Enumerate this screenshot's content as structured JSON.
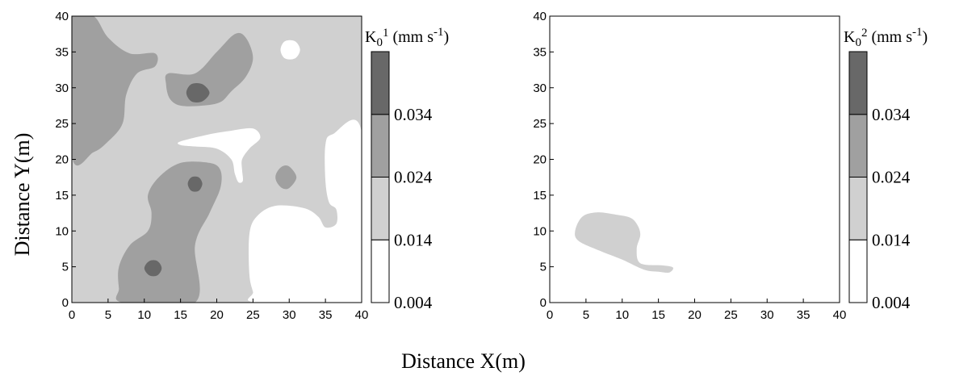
{
  "colors": {
    "level_0": "#ffffff",
    "level_1": "#d0d0d0",
    "level_2": "#a0a0a0",
    "level_3": "#686868",
    "outline": "#000000"
  },
  "figure": {
    "xlabel": "Distance X(m)",
    "ylabel": "Distance Y(m)"
  },
  "chart_data": [
    {
      "type": "heatmap",
      "panel": "left",
      "legend_title_main": "K",
      "legend_title_sub": "0",
      "legend_title_sup": "1",
      "legend_title_unit": " (mm s",
      "legend_title_unit_sup": "-1",
      "legend_title_close": ")",
      "legend_levels": [
        0.004,
        0.014,
        0.024,
        0.034
      ],
      "legend_labels": [
        "0.004",
        "0.014",
        "0.024",
        "0.034"
      ],
      "xlim": [
        0,
        40
      ],
      "ylim": [
        0,
        40
      ],
      "x_ticks": [
        "0",
        "5",
        "10",
        "15",
        "20",
        "25",
        "30",
        "35",
        "40"
      ],
      "y_ticks": [
        "0",
        "5",
        "10",
        "15",
        "20",
        "25",
        "30",
        "35",
        "40"
      ],
      "grid": false,
      "background_class": "0.014–0.024",
      "regions": [
        {
          "class": "0.024–0.034",
          "points": [
            [
              0,
              40
            ],
            [
              3,
              40
            ],
            [
              5,
              37
            ],
            [
              8,
              34.8
            ],
            [
              11.5,
              34.8
            ],
            [
              11.5,
              33
            ],
            [
              9,
              32
            ],
            [
              7.5,
              29
            ],
            [
              7,
              25
            ],
            [
              5,
              22.5
            ],
            [
              3,
              21
            ],
            [
              0,
              20.5
            ]
          ]
        },
        {
          "class": "0.024–0.034",
          "points": [
            [
              13.3,
              32
            ],
            [
              17,
              32
            ],
            [
              20,
              35
            ],
            [
              22.5,
              37.5
            ],
            [
              24,
              37
            ],
            [
              25,
              34.2
            ],
            [
              24,
              31.5
            ],
            [
              22,
              29.5
            ],
            [
              20.5,
              28
            ],
            [
              18,
              27.5
            ],
            [
              15,
              27.5
            ],
            [
              13.5,
              28.5
            ],
            [
              13,
              30.5
            ]
          ]
        },
        {
          "class": "0.024–0.034",
          "points": [
            [
              7,
              0
            ],
            [
              17,
              0
            ],
            [
              17,
              8
            ],
            [
              19,
              12.5
            ],
            [
              20.5,
              16
            ],
            [
              20.5,
              18.5
            ],
            [
              19,
              19.5
            ],
            [
              15,
              19.5
            ],
            [
              12,
              17.5
            ],
            [
              10.5,
              15
            ],
            [
              11,
              12.5
            ],
            [
              10.5,
              10
            ],
            [
              8,
              8
            ],
            [
              6.5,
              5
            ],
            [
              6.5,
              2
            ]
          ]
        },
        {
          "class": "0.024–0.034",
          "points": [
            [
              28.2,
              18
            ],
            [
              29,
              19
            ],
            [
              30,
              19
            ],
            [
              31,
              17.5
            ],
            [
              30,
              16
            ],
            [
              29,
              16
            ],
            [
              28.2,
              17
            ]
          ]
        },
        {
          "class": "0.034–0.044",
          "points": [
            [
              15.8,
              29.3
            ],
            [
              16.5,
              30.5
            ],
            [
              18,
              30.5
            ],
            [
              19,
              29.3
            ],
            [
              18,
              28.1
            ],
            [
              16.5,
              28.1
            ]
          ]
        },
        {
          "class": "0.034–0.044",
          "points": [
            [
              16,
              16.6
            ],
            [
              16.5,
              17.5
            ],
            [
              17.5,
              17.5
            ],
            [
              18,
              16.6
            ],
            [
              17.5,
              15.6
            ],
            [
              16.5,
              15.6
            ]
          ]
        },
        {
          "class": "0.034–0.044",
          "points": [
            [
              10,
              4.8
            ],
            [
              10.7,
              5.8
            ],
            [
              11.8,
              5.8
            ],
            [
              12.4,
              4.8
            ],
            [
              11.8,
              3.8
            ],
            [
              10.7,
              3.8
            ]
          ]
        },
        {
          "class": "0.004–0.014",
          "points": [
            [
              25.5,
              0
            ],
            [
              40,
              0
            ],
            [
              40,
              23.8
            ],
            [
              36,
              23.5
            ],
            [
              35,
              22
            ],
            [
              35,
              17
            ],
            [
              35.5,
              14
            ],
            [
              36.5,
              13
            ],
            [
              36.5,
              11
            ],
            [
              35,
              10.5
            ],
            [
              34,
              12
            ],
            [
              32,
              13.2
            ],
            [
              28,
              13.5
            ],
            [
              25.5,
              12
            ],
            [
              24.5,
              9.5
            ],
            [
              24.5,
              4
            ],
            [
              25,
              1.5
            ]
          ]
        },
        {
          "class": "0.004–0.014",
          "points": [
            [
              15,
              22.5
            ],
            [
              19,
              23.5
            ],
            [
              22,
              24
            ],
            [
              25,
              24.3
            ],
            [
              26,
              23
            ],
            [
              24.5,
              21.5
            ],
            [
              23.5,
              20
            ],
            [
              23.5,
              18.5
            ],
            [
              23.6,
              17
            ],
            [
              23,
              16.8
            ],
            [
              22.5,
              18
            ],
            [
              22,
              20
            ],
            [
              20,
              21.5
            ],
            [
              17,
              21.8
            ],
            [
              15,
              22
            ]
          ]
        },
        {
          "class": "0.004–0.014",
          "points": [
            [
              28.8,
              35.3
            ],
            [
              29.4,
              36.5
            ],
            [
              30.8,
              36.5
            ],
            [
              31.5,
              35.3
            ],
            [
              30.8,
              34.1
            ],
            [
              29.4,
              34.1
            ]
          ]
        }
      ]
    },
    {
      "type": "heatmap",
      "panel": "right",
      "legend_title_main": "K",
      "legend_title_sub": "0",
      "legend_title_sup": "2",
      "legend_title_unit": " (mm s",
      "legend_title_unit_sup": "-1",
      "legend_title_close": ")",
      "legend_levels": [
        0.004,
        0.014,
        0.024,
        0.034
      ],
      "legend_labels": [
        "0.004",
        "0.014",
        "0.024",
        "0.034"
      ],
      "xlim": [
        0,
        40
      ],
      "ylim": [
        0,
        40
      ],
      "x_ticks": [
        "0",
        "5",
        "10",
        "15",
        "20",
        "25",
        "30",
        "35",
        "40"
      ],
      "y_ticks": [
        "0",
        "5",
        "10",
        "15",
        "20",
        "25",
        "30",
        "35",
        "40"
      ],
      "grid": false,
      "background_class": "0.004–0.014",
      "regions": [
        {
          "class": "0.014–0.024",
          "points": [
            [
              3.5,
              10
            ],
            [
              4.5,
              12
            ],
            [
              6.5,
              12.6
            ],
            [
              9,
              12.3
            ],
            [
              11,
              11.9
            ],
            [
              12,
              11
            ],
            [
              12.5,
              9.5
            ],
            [
              12,
              7.5
            ],
            [
              12.5,
              5.5
            ],
            [
              15.5,
              5.2
            ],
            [
              17,
              4.9
            ],
            [
              16.5,
              4.2
            ],
            [
              15,
              4.3
            ],
            [
              13,
              4.6
            ],
            [
              10,
              6
            ],
            [
              7,
              7.2
            ],
            [
              4,
              8.6
            ]
          ]
        }
      ]
    }
  ]
}
